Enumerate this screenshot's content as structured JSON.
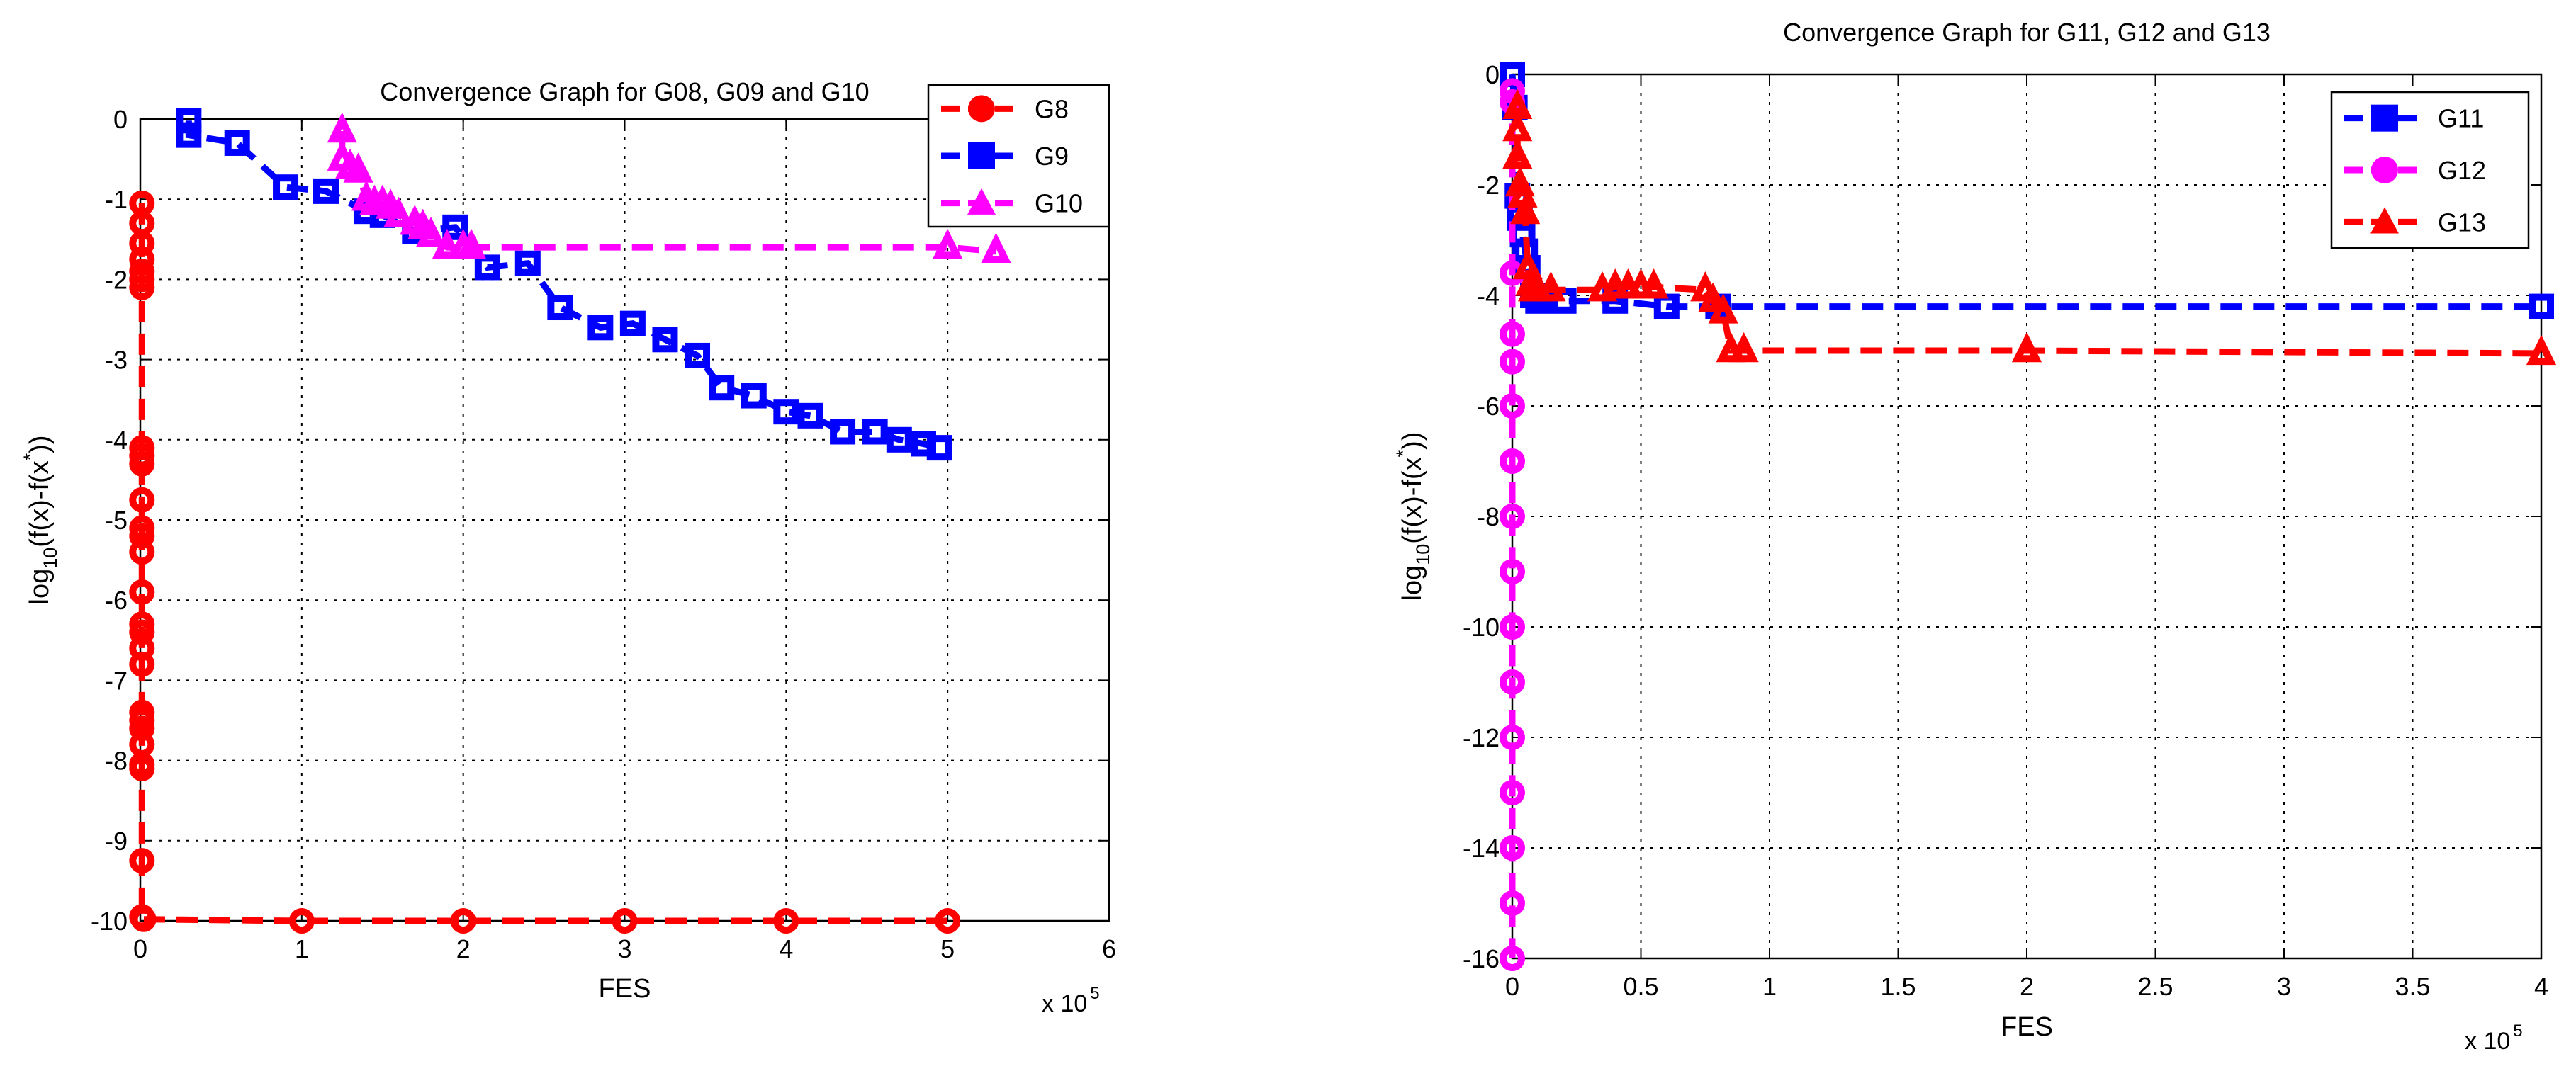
{
  "chart_data": [
    {
      "type": "line",
      "title": "Convergence Graph for G08, G09 and G10",
      "xlabel": "FES",
      "xlabel_exponent_text": "x 10",
      "xlabel_exponent_power": "5",
      "ylabel_prefix": "log",
      "ylabel_subscript": "10",
      "ylabel_mid": "(f(x)-f(x",
      "ylabel_sup": "*",
      "ylabel_suffix": "))",
      "xlim": [
        0,
        6
      ],
      "ylim": [
        -10,
        0
      ],
      "xticks": [
        0,
        1,
        2,
        3,
        4,
        5,
        6
      ],
      "xtick_labels": [
        "0",
        "1",
        "2",
        "3",
        "4",
        "5",
        "6"
      ],
      "yticks": [
        0,
        -1,
        -2,
        -3,
        -4,
        -5,
        -6,
        -7,
        -8,
        -9,
        -10
      ],
      "ytick_labels": [
        "0",
        "-1",
        "-2",
        "-3",
        "-4",
        "-5",
        "-6",
        "-7",
        "-8",
        "-9",
        "-10"
      ],
      "grid": true,
      "legend_position": "top-right",
      "series": [
        {
          "name": "G8",
          "color": "#ff0000",
          "marker": "circle",
          "x": [
            0.01,
            0.01,
            0.01,
            0.01,
            0.01,
            0.01,
            0.01,
            0.01,
            0.01,
            0.01,
            0.01,
            0.01,
            0.01,
            0.01,
            0.01,
            0.01,
            0.01,
            0.01,
            0.01,
            0.01,
            0.01,
            0.01,
            0.01,
            0.01,
            0.01,
            0.01,
            0.01,
            0.02,
            1.0,
            2.0,
            3.0,
            4.0,
            5.0
          ],
          "y": [
            -1.05,
            -1.3,
            -1.55,
            -1.75,
            -1.9,
            -2.0,
            -2.1,
            -4.1,
            -4.2,
            -4.3,
            -4.75,
            -5.1,
            -5.2,
            -5.4,
            -5.9,
            -6.3,
            -6.4,
            -6.6,
            -6.8,
            -7.4,
            -7.5,
            -7.6,
            -7.8,
            -8.05,
            -8.1,
            -9.25,
            -9.95,
            -9.98,
            -10.0,
            -10.0,
            -10.0,
            -10.0,
            -10.0
          ]
        },
        {
          "name": "G9",
          "color": "#0000ff",
          "marker": "square",
          "x": [
            0.3,
            0.3,
            0.6,
            0.9,
            1.15,
            1.4,
            1.5,
            1.7,
            1.95,
            2.15,
            2.4,
            2.6,
            2.85,
            3.05,
            3.25,
            3.45,
            3.6,
            3.8,
            4.0,
            4.15,
            4.35,
            4.55,
            4.7,
            4.85,
            4.95
          ],
          "y": [
            -0.02,
            -0.2,
            -0.3,
            -0.85,
            -0.9,
            -1.15,
            -1.2,
            -1.4,
            -1.35,
            -1.85,
            -1.8,
            -2.35,
            -2.6,
            -2.55,
            -2.75,
            -2.95,
            -3.35,
            -3.45,
            -3.65,
            -3.7,
            -3.9,
            -3.9,
            -4.0,
            -4.05,
            -4.1
          ]
        },
        {
          "name": "G10",
          "color": "#ff00ff",
          "marker": "triangle",
          "x": [
            1.25,
            1.25,
            1.3,
            1.35,
            1.4,
            1.45,
            1.5,
            1.55,
            1.6,
            1.7,
            1.75,
            1.8,
            1.9,
            2.0,
            2.05,
            5.0,
            5.3
          ],
          "y": [
            -0.15,
            -0.5,
            -0.6,
            -0.65,
            -1.0,
            -1.05,
            -1.05,
            -1.1,
            -1.2,
            -1.3,
            -1.35,
            -1.45,
            -1.6,
            -1.6,
            -1.6,
            -1.6,
            -1.65
          ]
        }
      ]
    },
    {
      "type": "line",
      "title": "Convergence Graph for G11, G12 and G13",
      "xlabel": "FES",
      "xlabel_exponent_text": "x 10",
      "xlabel_exponent_power": "5",
      "ylabel_prefix": "log",
      "ylabel_subscript": "10",
      "ylabel_mid": "(f(x)-f(x",
      "ylabel_sup": "*",
      "ylabel_suffix": "))",
      "xlim": [
        0,
        4
      ],
      "ylim": [
        -16,
        0
      ],
      "xticks": [
        0,
        0.5,
        1,
        1.5,
        2,
        2.5,
        3,
        3.5,
        4
      ],
      "xtick_labels": [
        "0",
        "0.5",
        "1",
        "1.5",
        "2",
        "2.5",
        "3",
        "3.5",
        "4"
      ],
      "yticks": [
        0,
        -2,
        -4,
        -6,
        -8,
        -10,
        -12,
        -14,
        -16
      ],
      "ytick_labels": [
        "0",
        "-2",
        "-4",
        "-6",
        "-8",
        "-10",
        "-12",
        "-14",
        "-16"
      ],
      "grid": true,
      "legend_position": "top-right",
      "series": [
        {
          "name": "G11",
          "color": "#0000ff",
          "marker": "square",
          "x": [
            0.0,
            0.01,
            0.02,
            0.03,
            0.04,
            0.05,
            0.06,
            0.08,
            0.1,
            0.2,
            0.4,
            0.6,
            0.8,
            4.0
          ],
          "y": [
            0.0,
            -0.6,
            -2.2,
            -2.6,
            -2.9,
            -3.2,
            -3.5,
            -4.0,
            -4.1,
            -4.1,
            -4.1,
            -4.2,
            -4.2,
            -4.2
          ]
        },
        {
          "name": "G12",
          "color": "#ff00ff",
          "marker": "circle",
          "x": [
            0.0,
            0.0,
            0.0,
            0.0,
            0.0,
            0.0,
            0.0,
            0.0,
            0.0,
            0.0,
            0.0,
            0.0,
            0.0,
            0.0,
            0.0,
            0.0
          ],
          "y": [
            -0.3,
            -0.5,
            -3.6,
            -4.7,
            -5.2,
            -6.0,
            -7.0,
            -8.0,
            -9.0,
            -10.0,
            -11.0,
            -12.0,
            -13.0,
            -14.0,
            -15.0,
            -16.0
          ]
        },
        {
          "name": "G13",
          "color": "#ff0000",
          "marker": "triangle",
          "x": [
            0.02,
            0.02,
            0.02,
            0.03,
            0.04,
            0.05,
            0.06,
            0.07,
            0.08,
            0.1,
            0.15,
            0.35,
            0.4,
            0.45,
            0.5,
            0.55,
            0.75,
            0.78,
            0.82,
            0.85,
            0.9,
            2.0,
            4.0
          ],
          "y": [
            -0.6,
            -1.0,
            -1.5,
            -2.0,
            -2.2,
            -2.5,
            -3.5,
            -3.8,
            -3.9,
            -3.9,
            -3.9,
            -3.9,
            -3.85,
            -3.85,
            -3.85,
            -3.85,
            -3.9,
            -4.1,
            -4.3,
            -5.0,
            -5.0,
            -5.0,
            -5.05
          ]
        }
      ]
    }
  ]
}
